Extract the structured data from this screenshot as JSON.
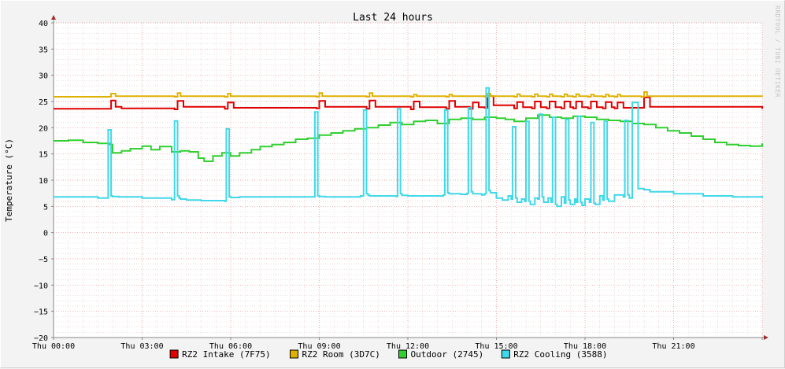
{
  "chart_data": {
    "type": "line",
    "title": "Last 24 hours",
    "ylabel": "Temperature (°C)",
    "xlabel": "",
    "ylim": [
      -20,
      40
    ],
    "xlim": [
      0,
      24
    ],
    "yticks": [
      "40",
      "35",
      "30",
      "25",
      "20",
      "15",
      "10",
      "5",
      "0",
      "−5",
      "−10",
      "−15",
      "−20"
    ],
    "xticks": [
      "Thu 00:00",
      "Thu 03:00",
      "Thu 06:00",
      "Thu 09:00",
      "Thu 12:00",
      "Thu 15:00",
      "Thu 18:00",
      "Thu 21:00"
    ],
    "grid": true,
    "legend_position": "bottom",
    "watermark": "RRDTOOL / TOBI OETIKER",
    "series": [
      {
        "name": "RZ2 Intake (7F75)",
        "color": "#e00000",
        "x": [
          0,
          1.9,
          1.95,
          2.1,
          2.3,
          4.1,
          4.2,
          4.4,
          5.8,
          5.9,
          6.1,
          8.9,
          9.0,
          9.2,
          10.6,
          10.7,
          10.9,
          12.1,
          12.2,
          12.4,
          13.3,
          13.4,
          13.6,
          14.1,
          14.2,
          14.4,
          14.6,
          14.7,
          14.9,
          15.6,
          15.7,
          15.9,
          16.2,
          16.3,
          16.5,
          16.7,
          16.8,
          17.0,
          17.2,
          17.3,
          17.5,
          17.6,
          17.7,
          17.9,
          18.1,
          18.2,
          18.4,
          18.6,
          18.7,
          18.9,
          19.0,
          19.1,
          19.3,
          19.9,
          20.0,
          20.2,
          24
        ],
        "y": [
          23.6,
          23.6,
          25.2,
          24.0,
          23.7,
          23.5,
          25.1,
          24.0,
          23.6,
          24.8,
          23.8,
          23.7,
          25.1,
          24.0,
          23.6,
          25.2,
          24.0,
          23.5,
          25.0,
          23.9,
          23.6,
          25.1,
          24.0,
          23.6,
          24.8,
          23.9,
          23.8,
          26.0,
          24.3,
          23.7,
          24.9,
          23.9,
          23.7,
          25.0,
          23.9,
          23.7,
          25.0,
          23.9,
          23.7,
          25.0,
          23.9,
          23.7,
          25.0,
          23.9,
          23.7,
          25.0,
          23.9,
          23.7,
          24.9,
          23.9,
          23.7,
          24.8,
          23.8,
          23.8,
          25.8,
          24.0,
          23.6
        ]
      },
      {
        "name": "RZ2 Room (3D7C)",
        "color": "#e0b000",
        "x": [
          0,
          1.9,
          1.95,
          2.1,
          4.1,
          4.2,
          4.3,
          5.8,
          5.9,
          6.0,
          8.9,
          9.0,
          9.1,
          10.6,
          10.7,
          10.8,
          12.1,
          12.2,
          12.3,
          13.3,
          13.4,
          13.5,
          14.6,
          14.7,
          14.8,
          15.6,
          15.7,
          15.8,
          16.2,
          16.3,
          16.4,
          16.7,
          16.8,
          16.9,
          17.2,
          17.3,
          17.4,
          17.6,
          17.7,
          17.8,
          18.1,
          18.2,
          18.3,
          18.6,
          18.7,
          18.8,
          19.0,
          19.1,
          19.2,
          19.9,
          20.0,
          20.1,
          24
        ],
        "y": [
          25.9,
          25.9,
          26.5,
          26.0,
          25.9,
          26.6,
          26.0,
          25.9,
          26.5,
          26.0,
          25.9,
          26.6,
          26.0,
          25.9,
          26.6,
          26.0,
          25.9,
          26.3,
          26.0,
          25.9,
          26.3,
          26.0,
          25.9,
          26.5,
          26.0,
          25.9,
          26.4,
          26.0,
          25.9,
          26.4,
          26.0,
          25.9,
          26.4,
          26.0,
          25.9,
          26.4,
          26.0,
          25.9,
          26.4,
          26.0,
          25.9,
          26.3,
          26.0,
          25.9,
          26.3,
          26.0,
          25.9,
          26.3,
          26.0,
          25.9,
          26.8,
          26.0,
          25.9
        ]
      },
      {
        "name": "Outdoor (2745)",
        "color": "#30d030",
        "x": [
          0,
          0.5,
          1.0,
          1.5,
          1.9,
          2.0,
          2.3,
          2.6,
          3.0,
          3.3,
          3.6,
          4.0,
          4.3,
          4.6,
          4.9,
          5.1,
          5.4,
          5.7,
          6.0,
          6.3,
          6.7,
          7.0,
          7.4,
          7.8,
          8.2,
          8.6,
          9.0,
          9.4,
          9.8,
          10.2,
          10.6,
          11.0,
          11.4,
          11.8,
          12.2,
          12.6,
          13.0,
          13.4,
          13.8,
          14.2,
          14.6,
          15.0,
          15.3,
          15.6,
          16.0,
          16.4,
          16.8,
          17.2,
          17.6,
          18.0,
          18.4,
          18.8,
          19.2,
          19.6,
          20.0,
          20.4,
          20.8,
          21.2,
          21.6,
          22.0,
          22.4,
          22.8,
          23.2,
          23.6,
          24
        ],
        "y": [
          17.5,
          17.6,
          17.2,
          17.0,
          16.8,
          15.2,
          15.6,
          16.0,
          16.5,
          15.8,
          16.4,
          15.4,
          15.6,
          15.4,
          14.2,
          13.6,
          14.6,
          15.2,
          14.6,
          15.2,
          15.8,
          16.4,
          16.8,
          17.2,
          17.8,
          18.0,
          18.6,
          19.0,
          19.4,
          19.8,
          20.0,
          20.5,
          21.0,
          20.6,
          21.2,
          21.4,
          20.8,
          21.6,
          21.8,
          21.6,
          22.0,
          21.8,
          21.6,
          21.2,
          21.8,
          22.4,
          22.0,
          21.8,
          22.2,
          22.0,
          21.6,
          21.4,
          21.2,
          20.8,
          20.6,
          20.0,
          19.4,
          19.0,
          18.4,
          17.8,
          17.2,
          16.8,
          16.6,
          16.5,
          17.0
        ]
      },
      {
        "name": "RZ2 Cooling (3588)",
        "color": "#40d8e8",
        "x": [
          0,
          1.5,
          1.8,
          1.85,
          1.9,
          1.95,
          2.0,
          2.2,
          3.0,
          4.0,
          4.1,
          4.15,
          4.2,
          4.25,
          4.3,
          4.5,
          5.0,
          5.8,
          5.85,
          5.9,
          5.95,
          6.0,
          6.3,
          7.5,
          8.8,
          8.85,
          8.9,
          8.95,
          9.0,
          9.2,
          10.4,
          10.5,
          10.55,
          10.6,
          10.65,
          10.7,
          11.0,
          11.6,
          11.65,
          11.7,
          11.75,
          11.8,
          12.0,
          12.5,
          13.2,
          13.25,
          13.3,
          13.35,
          13.4,
          13.8,
          14.0,
          14.05,
          14.1,
          14.15,
          14.2,
          14.5,
          14.6,
          14.65,
          14.7,
          14.75,
          14.8,
          15.0,
          15.2,
          15.4,
          15.5,
          15.55,
          15.6,
          15.65,
          15.7,
          15.85,
          15.95,
          16.0,
          16.05,
          16.1,
          16.15,
          16.3,
          16.4,
          16.45,
          16.5,
          16.55,
          16.6,
          16.75,
          16.85,
          16.9,
          16.95,
          17.0,
          17.05,
          17.2,
          17.3,
          17.35,
          17.4,
          17.45,
          17.5,
          17.65,
          17.7,
          17.75,
          17.8,
          17.85,
          17.9,
          18.0,
          18.15,
          18.2,
          18.25,
          18.3,
          18.35,
          18.5,
          18.6,
          18.65,
          18.7,
          18.75,
          18.8,
          19.0,
          19.3,
          19.35,
          19.4,
          19.45,
          19.5,
          19.6,
          19.8,
          20.0,
          20.2,
          21.0,
          22.0,
          23.0,
          24
        ],
        "y": [
          6.8,
          6.6,
          6.6,
          19.6,
          19.6,
          7.0,
          6.9,
          6.8,
          6.6,
          6.3,
          21.3,
          21.3,
          7.0,
          6.6,
          6.4,
          6.2,
          6.1,
          6.0,
          19.8,
          19.8,
          6.8,
          6.7,
          6.8,
          6.8,
          6.8,
          23.0,
          23.0,
          7.0,
          6.9,
          6.8,
          7.0,
          23.4,
          23.4,
          7.4,
          7.2,
          7.0,
          7.0,
          6.9,
          23.6,
          23.6,
          7.4,
          7.1,
          7.0,
          7.0,
          7.2,
          23.4,
          23.4,
          7.6,
          7.4,
          7.3,
          7.5,
          23.8,
          23.8,
          7.8,
          7.4,
          7.2,
          7.4,
          27.6,
          27.6,
          8.0,
          7.6,
          6.6,
          6.2,
          7.0,
          6.4,
          20.2,
          20.2,
          6.6,
          5.8,
          6.4,
          6.0,
          21.2,
          21.2,
          6.0,
          5.4,
          6.6,
          6.4,
          22.6,
          22.6,
          6.8,
          5.8,
          6.6,
          5.8,
          22.0,
          22.0,
          5.4,
          5.0,
          6.8,
          5.6,
          21.6,
          21.6,
          6.2,
          5.4,
          6.4,
          5.8,
          22.2,
          22.2,
          5.8,
          5.2,
          6.4,
          5.8,
          21.0,
          21.0,
          5.6,
          5.4,
          7.0,
          6.2,
          21.2,
          21.2,
          6.4,
          6.0,
          7.2,
          6.8,
          21.4,
          21.4,
          7.2,
          6.6,
          24.8,
          8.4,
          8.2,
          7.8,
          7.4,
          7.0,
          6.8,
          6.6
        ]
      }
    ]
  }
}
